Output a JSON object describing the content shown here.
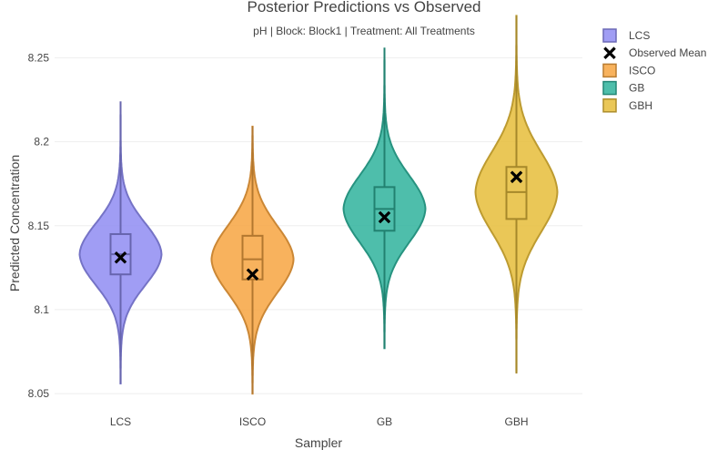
{
  "chart_data": {
    "type": "violin",
    "title": "Posterior Predictions vs Observed",
    "subtitle": "pH | Block: Block1 | Treatment: All Treatments",
    "xlabel": "Sampler",
    "ylabel": "Predicted Concentration",
    "ylim": [
      8.05,
      8.275
    ],
    "yticks": [
      8.05,
      8.1,
      8.15,
      8.2,
      8.25
    ],
    "ytick_labels": [
      "8.05",
      "8.1",
      "8.15",
      "8.2",
      "8.25"
    ],
    "grid": true,
    "legend_position": "top-right",
    "categories": [
      "LCS",
      "ISCO",
      "GB",
      "GBH"
    ],
    "series": [
      {
        "name": "LCS",
        "color": "#8f8cf2",
        "min": 8.056,
        "max": 8.224,
        "q1": 8.121,
        "median": 8.133,
        "q3": 8.145,
        "mode": 8.133,
        "observed_mean": 8.131
      },
      {
        "name": "ISCO",
        "color": "#f7a541",
        "min": 8.05,
        "max": 8.209,
        "q1": 8.118,
        "median": 8.13,
        "q3": 8.144,
        "mode": 8.13,
        "observed_mean": 8.121
      },
      {
        "name": "GB",
        "color": "#2fb39c",
        "min": 8.077,
        "max": 8.256,
        "q1": 8.147,
        "median": 8.16,
        "q3": 8.173,
        "mode": 8.16,
        "observed_mean": 8.155
      },
      {
        "name": "GBH",
        "color": "#e6bd3a",
        "min": 8.062,
        "max": 8.275,
        "q1": 8.154,
        "median": 8.17,
        "q3": 8.185,
        "mode": 8.17,
        "observed_mean": 8.179
      }
    ],
    "legend": [
      "LCS",
      "Observed Mean",
      "ISCO",
      "GB",
      "GBH"
    ]
  }
}
